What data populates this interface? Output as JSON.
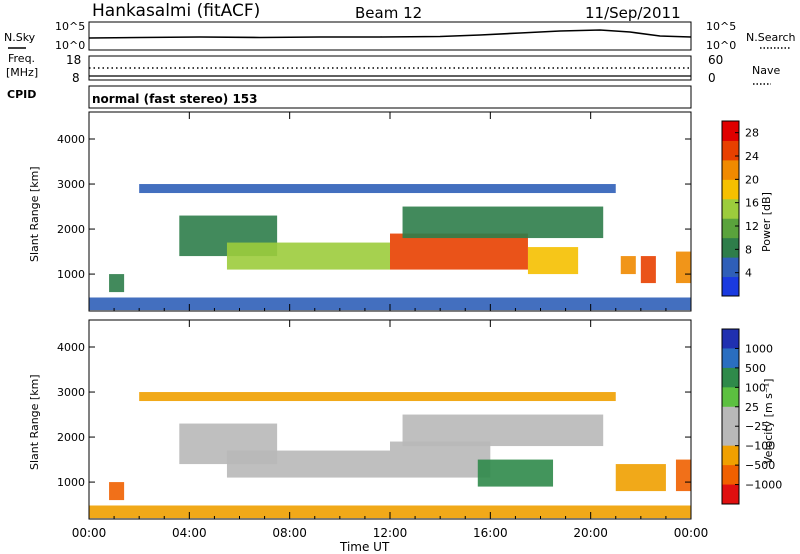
{
  "header": {
    "station": "Hankasalmi (fitACF)",
    "beam": "Beam 12",
    "date": "11/Sep/2011"
  },
  "top_panels": {
    "nsky_label": "N.Sky",
    "nsearch_label": "N.Search",
    "noise_ticks": [
      "10^5",
      "10^0"
    ],
    "freq_label_line1": "Freq.",
    "freq_label_line2": "[MHz]",
    "freq_ticks": [
      "18",
      "8"
    ],
    "nave_label": "Nave",
    "nave_ticks": [
      "60",
      "0"
    ],
    "cpid_label": "CPID",
    "cpid_text": "normal (fast stereo) 153"
  },
  "colors": {
    "power_scale": [
      "#1a3ae0",
      "#2f5fb8",
      "#2e7d4a",
      "#5aa33c",
      "#9ccc3c",
      "#f5c000",
      "#f08a00",
      "#e84000",
      "#e00000"
    ],
    "velocity_scale": [
      "#2030b0",
      "#2a6ec0",
      "#2f8a4a",
      "#5cc040",
      "#b8b8b8",
      "#b8b8b8",
      "#f0a000",
      "#f06000",
      "#e01010"
    ]
  },
  "chart_data": [
    {
      "type": "heatmap",
      "title": "Power",
      "ylabel": "Slant Range [km]",
      "xlabel": "",
      "x_ticks": [
        "00:00",
        "04:00",
        "08:00",
        "12:00",
        "16:00",
        "20:00",
        "00:00"
      ],
      "y_ticks": [
        "1000",
        "2000",
        "3000",
        "4000"
      ],
      "xlim_hours": [
        0,
        24
      ],
      "ylim_km": [
        180,
        4600
      ],
      "colorbar_label": "Power [dB]",
      "colorbar_ticks": [
        "4",
        "8",
        "12",
        "16",
        "20",
        "24",
        "28"
      ],
      "colorbar_range": [
        0,
        30
      ],
      "grid": false,
      "regions": [
        {
          "t0": 0.0,
          "t1": 24.0,
          "r0": 200,
          "r1": 480,
          "value": 6
        },
        {
          "t0": 0.8,
          "t1": 1.4,
          "r0": 600,
          "r1": 1000,
          "value": 9
        },
        {
          "t0": 3.6,
          "t1": 7.5,
          "r0": 1400,
          "r1": 2300,
          "value": 8
        },
        {
          "t0": 5.5,
          "t1": 12.0,
          "r0": 1100,
          "r1": 1700,
          "value": 14
        },
        {
          "t0": 12.0,
          "t1": 17.5,
          "r0": 1100,
          "r1": 1900,
          "value": 24
        },
        {
          "t0": 17.5,
          "t1": 19.5,
          "r0": 1000,
          "r1": 1600,
          "value": 18
        },
        {
          "t0": 12.5,
          "t1": 20.5,
          "r0": 1800,
          "r1": 2500,
          "value": 9
        },
        {
          "t0": 2.0,
          "t1": 21.0,
          "r0": 2800,
          "r1": 3000,
          "value": 6
        },
        {
          "t0": 21.2,
          "t1": 21.8,
          "r0": 1000,
          "r1": 1400,
          "value": 20
        },
        {
          "t0": 22.0,
          "t1": 22.6,
          "r0": 800,
          "r1": 1400,
          "value": 26
        },
        {
          "t0": 23.4,
          "t1": 24.0,
          "r0": 800,
          "r1": 1500,
          "value": 22
        }
      ]
    },
    {
      "type": "heatmap",
      "title": "Velocity",
      "ylabel": "Slant Range [km]",
      "xlabel": "Time UT",
      "x_ticks": [
        "00:00",
        "04:00",
        "08:00",
        "12:00",
        "16:00",
        "20:00",
        "00:00"
      ],
      "y_ticks": [
        "1000",
        "2000",
        "3000",
        "4000"
      ],
      "xlim_hours": [
        0,
        24
      ],
      "ylim_km": [
        180,
        4600
      ],
      "colorbar_label": "Velocity [m s⁻¹]",
      "colorbar_ticks": [
        "1000",
        "500",
        "100",
        "25",
        "−25",
        "−100",
        "−500",
        "−1000"
      ],
      "grid": false,
      "regions": [
        {
          "t0": 0.0,
          "t1": 24.0,
          "r0": 200,
          "r1": 480,
          "value": -80
        },
        {
          "t0": 0.8,
          "t1": 1.4,
          "r0": 600,
          "r1": 1000,
          "value": -150
        },
        {
          "t0": 3.6,
          "t1": 7.5,
          "r0": 1400,
          "r1": 2300,
          "value": 0
        },
        {
          "t0": 5.5,
          "t1": 12.0,
          "r0": 1100,
          "r1": 1700,
          "value": 0
        },
        {
          "t0": 12.0,
          "t1": 16.0,
          "r0": 1100,
          "r1": 1900,
          "value": 0
        },
        {
          "t0": 15.5,
          "t1": 18.5,
          "r0": 900,
          "r1": 1500,
          "value": 200
        },
        {
          "t0": 12.5,
          "t1": 20.5,
          "r0": 1800,
          "r1": 2500,
          "value": -20
        },
        {
          "t0": 2.0,
          "t1": 21.0,
          "r0": 2800,
          "r1": 3000,
          "value": -30
        },
        {
          "t0": 21.0,
          "t1": 23.0,
          "r0": 800,
          "r1": 1400,
          "value": -60
        },
        {
          "t0": 23.4,
          "t1": 24.0,
          "r0": 800,
          "r1": 1500,
          "value": -120
        }
      ]
    }
  ]
}
